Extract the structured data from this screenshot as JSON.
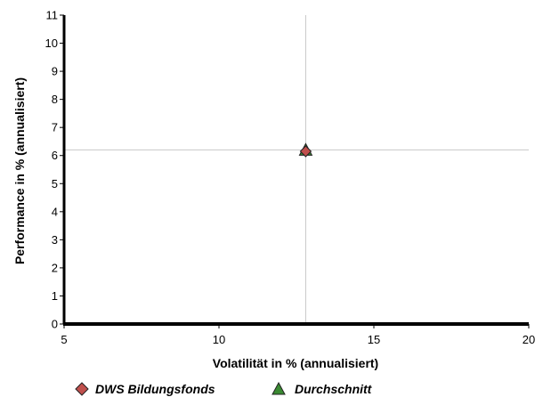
{
  "chart_data": {
    "type": "scatter",
    "xlabel": "Volatilität in % (annualisiert)",
    "ylabel": "Performance in % (annualisiert)",
    "xlim": [
      5,
      20
    ],
    "ylim": [
      0,
      11
    ],
    "x_ticks": [
      5,
      10,
      15,
      20
    ],
    "y_ticks": [
      0,
      1,
      2,
      3,
      4,
      5,
      6,
      7,
      8,
      9,
      10,
      11
    ],
    "grid": false,
    "reference_lines": {
      "x": 12.8,
      "y": 6.2
    },
    "legend_position": "bottom-left",
    "series": [
      {
        "name": "DWS Bildungsfonds",
        "marker": "diamond",
        "color": "#c0504d",
        "points": [
          {
            "x": 12.8,
            "y": 6.15
          }
        ]
      },
      {
        "name": "Durchschnitt",
        "marker": "triangle",
        "color": "#3a8a32",
        "points": [
          {
            "x": 12.8,
            "y": 6.2
          }
        ]
      }
    ]
  }
}
